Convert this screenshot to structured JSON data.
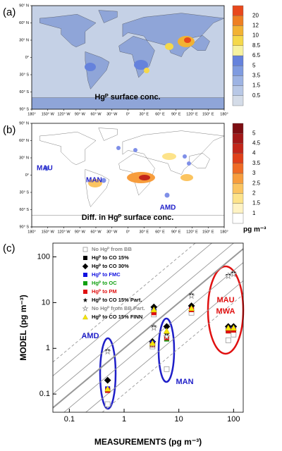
{
  "chart_data": [
    {
      "type": "map",
      "panel_label": "(a)",
      "annotation": "Hgᴾ surface conc.",
      "xlim": [
        -180,
        180
      ],
      "ylim": [
        -90,
        90
      ],
      "xticks": [
        {
          "value": -180,
          "label": "180°"
        },
        {
          "value": -150,
          "label": "150° W"
        },
        {
          "value": -120,
          "label": "120° W"
        },
        {
          "value": -90,
          "label": "90° W"
        },
        {
          "value": -60,
          "label": "60° W"
        },
        {
          "value": -30,
          "label": "30° W"
        },
        {
          "value": 0,
          "label": "0°"
        },
        {
          "value": 30,
          "label": "30° E"
        },
        {
          "value": 60,
          "label": "60° E"
        },
        {
          "value": 90,
          "label": "90° E"
        },
        {
          "value": 120,
          "label": "120° E"
        },
        {
          "value": 150,
          "label": "150° E"
        },
        {
          "value": 180,
          "label": "180°"
        }
      ],
      "yticks": [
        {
          "value": 90,
          "label": "90° N"
        },
        {
          "value": 60,
          "label": "60° N"
        },
        {
          "value": 30,
          "label": "30° N"
        },
        {
          "value": 0,
          "label": "0°"
        },
        {
          "value": -30,
          "label": "30° S"
        },
        {
          "value": -60,
          "label": "60° S"
        },
        {
          "value": -90,
          "label": "90° S"
        }
      ],
      "colorbar": {
        "ticks": [
          0.5,
          1.5,
          3.5,
          5,
          6.5,
          8.5,
          10,
          12,
          20
        ],
        "colors": [
          "#d4dce8",
          "#b8c8e6",
          "#9db3e3",
          "#7f9be0",
          "#6582dc",
          "#f7f2a0",
          "#f5d84a",
          "#f2b233",
          "#ee7f22",
          "#e8481c"
        ]
      }
    },
    {
      "type": "map",
      "panel_label": "(b)",
      "annotation": "Diff. in Hgᴾ surface conc.",
      "stations": [
        "MAU",
        "MAN",
        "AMD"
      ],
      "xlim": [
        -180,
        180
      ],
      "ylim": [
        -90,
        90
      ],
      "xticks": [
        {
          "value": -180,
          "label": "180°"
        },
        {
          "value": -150,
          "label": "150° W"
        },
        {
          "value": -120,
          "label": "120° W"
        },
        {
          "value": -90,
          "label": "90° W"
        },
        {
          "value": -60,
          "label": "60° W"
        },
        {
          "value": -30,
          "label": "30° W"
        },
        {
          "value": 0,
          "label": "0°"
        },
        {
          "value": 30,
          "label": "30° E"
        },
        {
          "value": 60,
          "label": "60° E"
        },
        {
          "value": 90,
          "label": "90° E"
        },
        {
          "value": 120,
          "label": "120° E"
        },
        {
          "value": 150,
          "label": "150° E"
        },
        {
          "value": 180,
          "label": "180°"
        }
      ],
      "yticks": [
        {
          "value": 90,
          "label": "90° N"
        },
        {
          "value": 60,
          "label": "60° N"
        },
        {
          "value": 30,
          "label": "30° N"
        },
        {
          "value": 0,
          "label": "0°"
        },
        {
          "value": -30,
          "label": "30° S"
        },
        {
          "value": -60,
          "label": "60° S"
        },
        {
          "value": -90,
          "label": "90° S"
        }
      ],
      "colorbar": {
        "ticks": [
          1,
          1.5,
          2,
          2.5,
          3,
          3.5,
          4,
          4.5,
          5
        ],
        "unit": "pg m⁻³",
        "colors": [
          "#ffffff",
          "#fff3c4",
          "#fde38a",
          "#fbc460",
          "#f79d3d",
          "#ef6b25",
          "#e0401a",
          "#c3261a",
          "#a31818",
          "#7d0d12"
        ]
      }
    },
    {
      "type": "scatter",
      "panel_label": "(c)",
      "xlabel": "MEASUREMENTS (pg m⁻³)",
      "ylabel": "MODEL (pg m⁻³)",
      "log_x": true,
      "log_y": true,
      "xlim": [
        0.05,
        150
      ],
      "ylim": [
        0.04,
        200
      ],
      "xticks": [
        0.1,
        1,
        10,
        100
      ],
      "yticks": [
        0.1,
        1,
        10,
        100
      ],
      "reference_lines": [
        {
          "factor": 0.1,
          "dashed": true
        },
        {
          "factor": 0.2,
          "dashed": false
        },
        {
          "factor": 0.5,
          "dashed": false
        },
        {
          "factor": 1,
          "dashed": false
        },
        {
          "factor": 2,
          "dashed": false
        },
        {
          "factor": 5,
          "dashed": false
        },
        {
          "factor": 10,
          "dashed": true
        }
      ],
      "groups": [
        {
          "labels": [
            "AMD"
          ],
          "color": "#1f1fc8"
        },
        {
          "labels": [
            "MAN"
          ],
          "color": "#1f1fc8"
        },
        {
          "labels": [
            "MAU",
            "MWA"
          ],
          "color": "#e01010"
        }
      ],
      "x": [
        0.5,
        3.3,
        3.5,
        6,
        17,
        80,
        100
      ],
      "series": [
        {
          "name": "No Hgᴾ from BB",
          "marker": "open-square",
          "color": "#999999",
          "text_color": "#888888",
          "values": [
            0.06,
            1.1,
            5.5,
            0.35,
            6,
            1.5,
            2
          ]
        },
        {
          "name": "Hgᴾ to CO 15%",
          "marker": "square",
          "color": "#000000",
          "text_color": "#000000",
          "values": [
            0.12,
            1.2,
            6.5,
            1.6,
            7,
            2.5,
            2.6
          ]
        },
        {
          "name": "Hgᴾ to CO 30%",
          "marker": "diamond",
          "color": "#000000",
          "text_color": "#000000",
          "values": [
            0.2,
            1.4,
            8,
            3,
            8.5,
            3,
            3
          ]
        },
        {
          "name": "Hgᴾ to FMC",
          "marker": "square",
          "color": "#1010e0",
          "text_color": "#1010e0",
          "values": [
            0.13,
            1.3,
            6.5,
            1.7,
            7,
            2.5,
            2.6
          ]
        },
        {
          "name": "Hgᴾ to OC",
          "marker": "square",
          "color": "#10a010",
          "text_color": "#10a010",
          "values": [
            0.12,
            1.2,
            6.2,
            1.6,
            7,
            2.4,
            2.5
          ]
        },
        {
          "name": "Hgᴾ to PM",
          "marker": "square",
          "color": "#e01010",
          "text_color": "#e01010",
          "values": [
            0.12,
            1.2,
            6,
            1.7,
            7,
            2.4,
            2.5
          ]
        },
        {
          "name": "Hgᴾ to CO 15% Part.",
          "marker": "star",
          "color": "#000000",
          "text_color": "#000000",
          "values": [
            0.9,
            1.3,
            3,
            2,
            15,
            40,
            45
          ]
        },
        {
          "name": "No Hgᴾ from BB Part.",
          "marker": "open-star",
          "color": "#999999",
          "text_color": "#888888",
          "values": [
            0.85,
            1.2,
            2.8,
            1.8,
            14,
            38,
            42
          ]
        },
        {
          "name": "Hgᴾ to CO 15% FINN",
          "marker": "triangle",
          "color": "#f5e60a",
          "text_color": "#000000",
          "values": [
            0.13,
            1.3,
            7,
            2.4,
            7.5,
            2.8,
            2.8
          ]
        }
      ]
    }
  ]
}
